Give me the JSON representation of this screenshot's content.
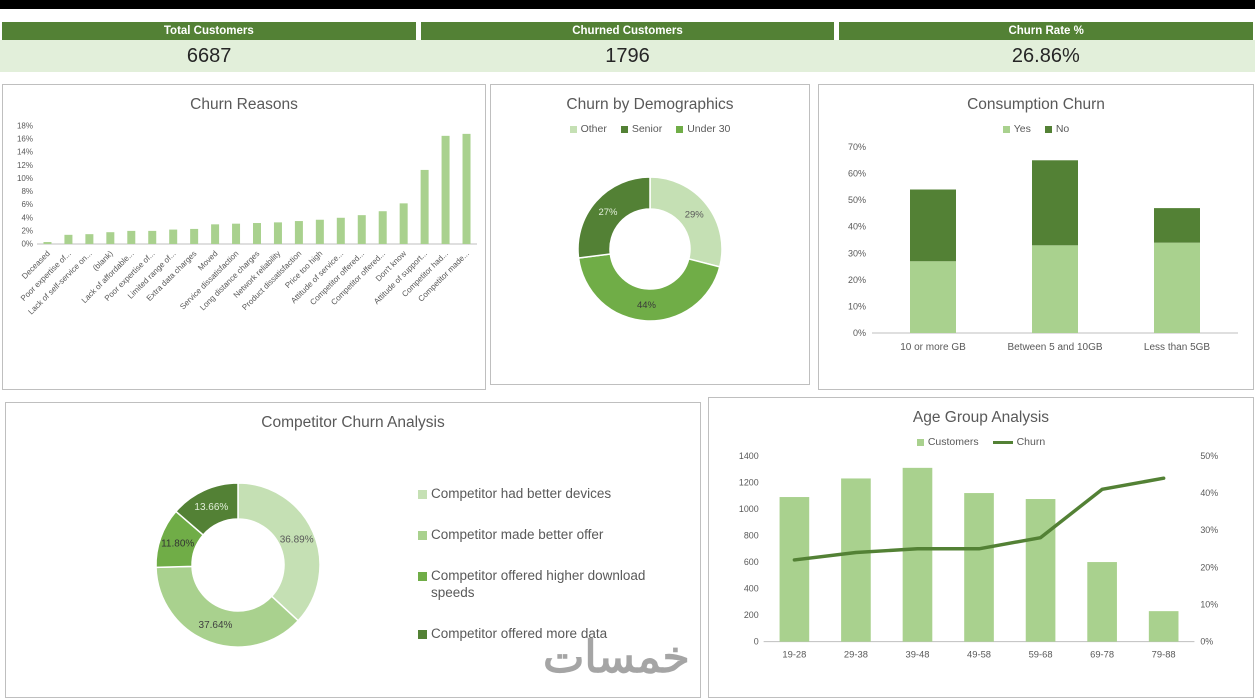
{
  "kpis": [
    {
      "label": "Total Customers",
      "value": "6687"
    },
    {
      "label": "Churned Customers",
      "value": "1796"
    },
    {
      "label": "Churn Rate %",
      "value": "26.86%"
    }
  ],
  "watermark": "خمسات",
  "colors": {
    "header_green": "#538135",
    "kpi_band": "#E2EFDA",
    "light_green": "#C5E0B4",
    "mid_green": "#A9D18E",
    "green": "#70AD47",
    "dark_green": "#538135"
  },
  "chart_data": [
    {
      "type": "bar",
      "title": "Churn Reasons",
      "ylim": [
        0,
        18
      ],
      "ytick_step": 2,
      "ytick_suffix": "%",
      "bar_color": "#A9D18E",
      "categories": [
        "Deceased",
        "Poor expertise of...",
        "Lack of self-service on...",
        "(blank)",
        "Lack of affordable...",
        "Poor expertise of...",
        "Limited range of...",
        "Extra data charges",
        "Moved",
        "Service dissatisfaction",
        "Long distance charges",
        "Network reliability",
        "Product dissatisfaction",
        "Price too high",
        "Attitude of service...",
        "Competitor offered...",
        "Competitor offered...",
        "Don't know",
        "Attitude of support...",
        "Competitor had...",
        "Competitor made..."
      ],
      "values": [
        0.3,
        1.4,
        1.5,
        1.8,
        2.0,
        2.0,
        2.2,
        2.3,
        3.0,
        3.1,
        3.2,
        3.3,
        3.5,
        3.7,
        4.0,
        4.4,
        5.0,
        6.2,
        11.3,
        16.5,
        16.8
      ]
    },
    {
      "type": "donut",
      "title": "Churn by Demographics",
      "legend": [
        {
          "label": "Other",
          "color": "#C5E0B4"
        },
        {
          "label": "Senior",
          "color": "#538135"
        },
        {
          "label": "Under 30",
          "color": "#70AD47"
        }
      ],
      "slices": [
        {
          "label": "Other",
          "value": 29,
          "display": "29%",
          "color": "#C5E0B4",
          "text_color": "#595959"
        },
        {
          "label": "Under 30",
          "value": 44,
          "display": "44%",
          "color": "#70AD47",
          "text_color": "#3a3a3a"
        },
        {
          "label": "Senior",
          "value": 27,
          "display": "27%",
          "color": "#538135",
          "text_color": "#E2EFDA"
        }
      ]
    },
    {
      "type": "stacked_bar",
      "title": "Consumption Churn",
      "categories": [
        "10 or more GB",
        "Between 5 and 10GB",
        "Less than 5GB"
      ],
      "series": [
        {
          "name": "Yes",
          "color": "#A9D18E",
          "values": [
            27,
            33,
            34
          ]
        },
        {
          "name": "No",
          "color": "#538135",
          "values": [
            27,
            32,
            13
          ]
        }
      ],
      "ylim": [
        0,
        70
      ],
      "ytick_step": 10,
      "ytick_suffix": "%"
    },
    {
      "type": "donut",
      "title": "Competitor Churn Analysis",
      "legend": [
        {
          "label": "Competitor had better devices",
          "color": "#C5E0B4"
        },
        {
          "label": "Competitor made better offer",
          "color": "#A9D18E"
        },
        {
          "label": "Competitor offered higher download speeds",
          "color": "#70AD47"
        },
        {
          "label": "Competitor offered more data",
          "color": "#538135"
        }
      ],
      "slices": [
        {
          "label": "Competitor had better devices",
          "value": 36.89,
          "display": "36.89%",
          "color": "#C5E0B4",
          "text_color": "#595959"
        },
        {
          "label": "Competitor made better offer",
          "value": 37.64,
          "display": "37.64%",
          "color": "#A9D18E",
          "text_color": "#404040"
        },
        {
          "label": "Competitor offered higher download speeds",
          "value": 11.8,
          "display": "11.80%",
          "color": "#70AD47",
          "text_color": "#333333"
        },
        {
          "label": "Competitor offered more data",
          "value": 13.66,
          "display": "13.66%",
          "color": "#538135",
          "text_color": "#E2EFDA"
        }
      ]
    },
    {
      "type": "combo",
      "title": "Age Group Analysis",
      "categories": [
        "19-28",
        "29-38",
        "39-48",
        "49-58",
        "59-68",
        "69-78",
        "79-88"
      ],
      "bar_series": {
        "name": "Customers",
        "color": "#A9D18E",
        "values": [
          1090,
          1230,
          1310,
          1120,
          1075,
          600,
          230
        ]
      },
      "line_series": {
        "name": "Churn",
        "color": "#538135",
        "values": [
          22,
          24,
          25,
          25,
          28,
          41,
          44
        ]
      },
      "ylim_left": [
        0,
        1400
      ],
      "ytick_step_left": 200,
      "ylim_right": [
        0,
        50
      ],
      "ytick_step_right": 10,
      "ytick_suffix_right": "%"
    }
  ]
}
